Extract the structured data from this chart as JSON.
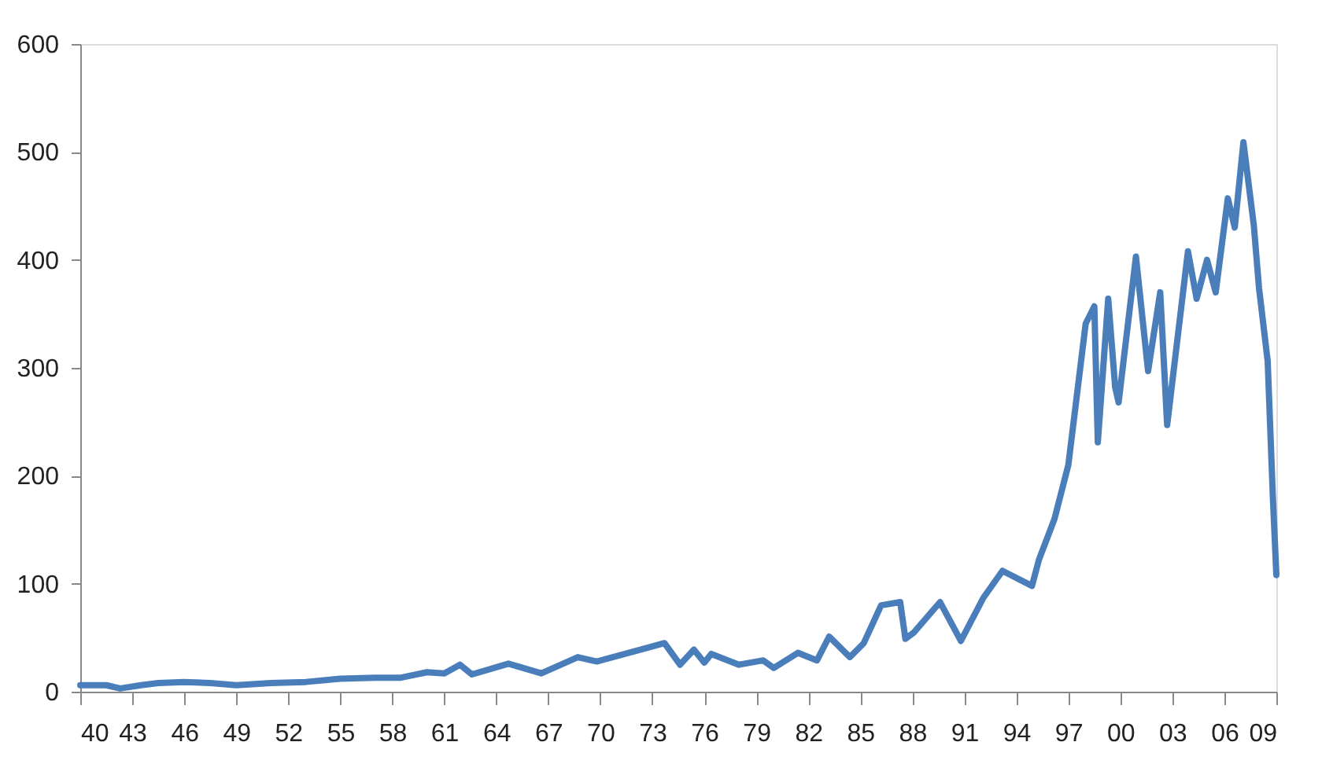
{
  "chart_data": {
    "type": "line",
    "xlim": [
      1940,
      2009
    ],
    "ylim": [
      0,
      600
    ],
    "yticks": [
      0,
      100,
      200,
      300,
      400,
      500,
      600
    ],
    "xticks": [
      {
        "value": 1940,
        "label": "40"
      },
      {
        "value": 1943,
        "label": "43"
      },
      {
        "value": 1946,
        "label": "46"
      },
      {
        "value": 1949,
        "label": "49"
      },
      {
        "value": 1952,
        "label": "52"
      },
      {
        "value": 1955,
        "label": "55"
      },
      {
        "value": 1958,
        "label": "58"
      },
      {
        "value": 1961,
        "label": "61"
      },
      {
        "value": 1964,
        "label": "64"
      },
      {
        "value": 1967,
        "label": "67"
      },
      {
        "value": 1970,
        "label": "70"
      },
      {
        "value": 1973,
        "label": "73"
      },
      {
        "value": 1976,
        "label": "76"
      },
      {
        "value": 1979,
        "label": "79"
      },
      {
        "value": 1982,
        "label": "82"
      },
      {
        "value": 1985,
        "label": "85"
      },
      {
        "value": 1988,
        "label": "88"
      },
      {
        "value": 1991,
        "label": "91"
      },
      {
        "value": 1994,
        "label": "94"
      },
      {
        "value": 1997,
        "label": "97"
      },
      {
        "value": 2000,
        "label": "00"
      },
      {
        "value": 2003,
        "label": "03"
      },
      {
        "value": 2006,
        "label": "06"
      },
      {
        "value": 2009,
        "label": "09"
      }
    ],
    "grid": false,
    "marker": "none",
    "line_style": "solid",
    "series": [
      {
        "color": "#4a7ebb",
        "x": [
          1940,
          1941.5,
          1942.3,
          1943.5,
          1944.5,
          1946,
          1947.5,
          1949,
          1951,
          1953,
          1955,
          1957,
          1958.5,
          1960,
          1961,
          1961.9,
          1962.6,
          1964.7,
          1966.6,
          1968.7,
          1969.8,
          1972.8,
          1973.7,
          1974.6,
          1975.4,
          1976.0,
          1976.4,
          1978.0,
          1979.4,
          1980.0,
          1981.4,
          1982.5,
          1983.2,
          1984.4,
          1985.2,
          1986.2,
          1987.3,
          1987.6,
          1988.1,
          1989.6,
          1990.8,
          1992.1,
          1993.2,
          1994.9,
          1995.3,
          1996.2,
          1997.0,
          1998.0,
          1998.5,
          1998.7,
          1999.3,
          1999.7,
          1999.9,
          2000.9,
          2001.6,
          2002.3,
          2002.7,
          2003.9,
          2004.4,
          2005.0,
          2005.5,
          2006.2,
          2006.6,
          2007.1,
          2007.7,
          2008.0,
          2008.5,
          2008.8,
          2009.0
        ],
        "values": [
          6,
          6,
          3,
          6,
          8,
          9,
          8,
          6,
          8,
          9,
          12,
          13,
          13,
          18,
          17,
          25,
          16,
          26,
          17,
          32,
          28,
          41,
          45,
          25,
          39,
          27,
          35,
          25,
          29,
          22,
          36,
          29,
          51,
          32,
          45,
          80,
          83,
          49,
          55,
          83,
          47,
          87,
          112,
          98,
          122,
          160,
          210,
          341,
          357,
          231,
          364,
          282,
          268,
          403,
          297,
          370,
          247,
          408,
          364,
          400,
          370,
          457,
          430,
          509,
          432,
          374,
          306,
          180,
          108
        ]
      }
    ]
  }
}
